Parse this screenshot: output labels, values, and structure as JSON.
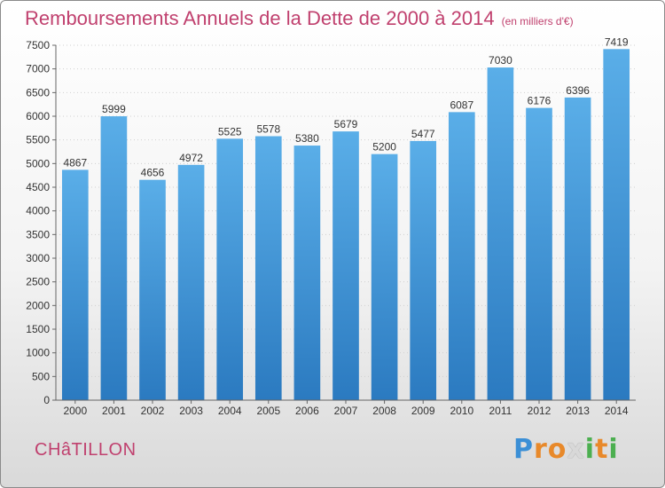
{
  "title": "Remboursements Annuels de la Dette de 2000 à 2014",
  "unit": "(en milliers d'€)",
  "place_name": "CHâTILLON",
  "logo": {
    "letters": [
      "P",
      "r",
      "o",
      "x",
      "i",
      "t",
      "i"
    ],
    "colors": [
      "#3b8fd6",
      "#e8892a",
      "#e8892a",
      "#d8d8d8",
      "#4caf50",
      "#e8892a",
      "#4caf50"
    ]
  },
  "colors": {
    "bar_light": "#5aaee8",
    "bar_dark": "#2b7ac0",
    "accent": "#c0406e"
  },
  "chart_data": {
    "type": "bar",
    "categories": [
      "2000",
      "2001",
      "2002",
      "2003",
      "2004",
      "2005",
      "2006",
      "2007",
      "2008",
      "2009",
      "2010",
      "2011",
      "2012",
      "2013",
      "2014"
    ],
    "values": [
      4867,
      5999,
      4656,
      4972,
      5525,
      5578,
      5380,
      5679,
      5200,
      5477,
      6087,
      7030,
      6176,
      6396,
      7419
    ],
    "ylim": [
      0,
      7500
    ],
    "yticks": [
      0,
      500,
      1000,
      1500,
      2000,
      2500,
      3000,
      3500,
      4000,
      4500,
      5000,
      5500,
      6000,
      6500,
      7000,
      7500
    ],
    "grid": true,
    "data_labels": true
  }
}
